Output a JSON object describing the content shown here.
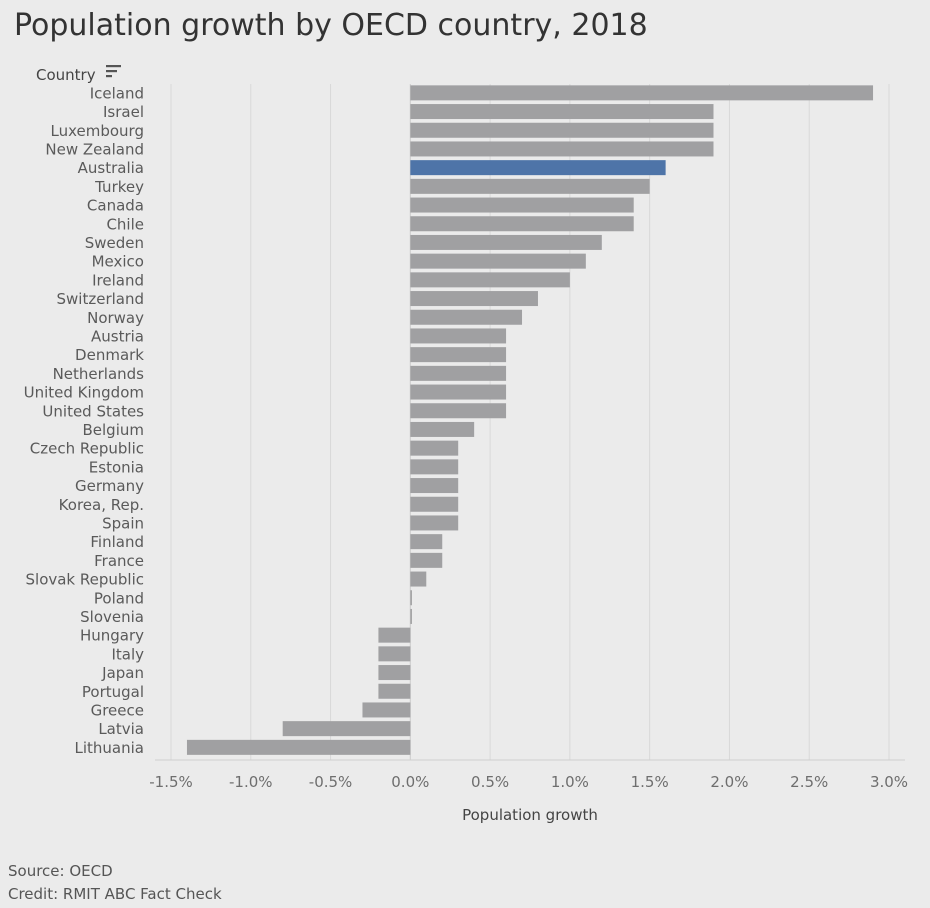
{
  "title": "Population growth by OECD country, 2018",
  "footer": {
    "source": "Source: OECD",
    "credit": "Credit: RMIT ABC Fact Check"
  },
  "colors": {
    "bar": "#a0a0a2",
    "highlight": "#4e74a8",
    "grid": "#d8d8d8",
    "axis_text": "#6e6e6e",
    "label_text": "#5a5a5a"
  },
  "chart_data": {
    "type": "bar",
    "orientation": "horizontal",
    "title": "Population growth by OECD country, 2018",
    "ylabel": "Country",
    "xlabel": "Population growth",
    "xlim": [
      -1.5,
      3.0
    ],
    "xticks": [
      -1.5,
      -1.0,
      -0.5,
      0.0,
      0.5,
      1.0,
      1.5,
      2.0,
      2.5,
      3.0
    ],
    "xtick_labels": [
      "-1.5%",
      "-1.0%",
      "-0.5%",
      "0.0%",
      "0.5%",
      "1.0%",
      "1.5%",
      "2.0%",
      "2.5%",
      "3.0%"
    ],
    "unit": "%",
    "grid": true,
    "highlight": "Australia",
    "categories": [
      "Iceland",
      "Israel",
      "Luxembourg",
      "New Zealand",
      "Australia",
      "Turkey",
      "Canada",
      "Chile",
      "Sweden",
      "Mexico",
      "Ireland",
      "Switzerland",
      "Norway",
      "Austria",
      "Denmark",
      "Netherlands",
      "United Kingdom",
      "United States",
      "Belgium",
      "Czech Republic",
      "Estonia",
      "Germany",
      "Korea, Rep.",
      "Spain",
      "Finland",
      "France",
      "Slovak Republic",
      "Poland",
      "Slovenia",
      "Hungary",
      "Italy",
      "Japan",
      "Portugal",
      "Greece",
      "Latvia",
      "Lithuania"
    ],
    "values": [
      2.9,
      1.9,
      1.9,
      1.9,
      1.6,
      1.5,
      1.4,
      1.4,
      1.2,
      1.1,
      1.0,
      0.8,
      0.7,
      0.6,
      0.6,
      0.6,
      0.6,
      0.6,
      0.4,
      0.3,
      0.3,
      0.3,
      0.3,
      0.3,
      0.2,
      0.2,
      0.1,
      0.01,
      0.01,
      -0.2,
      -0.2,
      -0.2,
      -0.2,
      -0.3,
      -0.8,
      -1.4
    ]
  }
}
